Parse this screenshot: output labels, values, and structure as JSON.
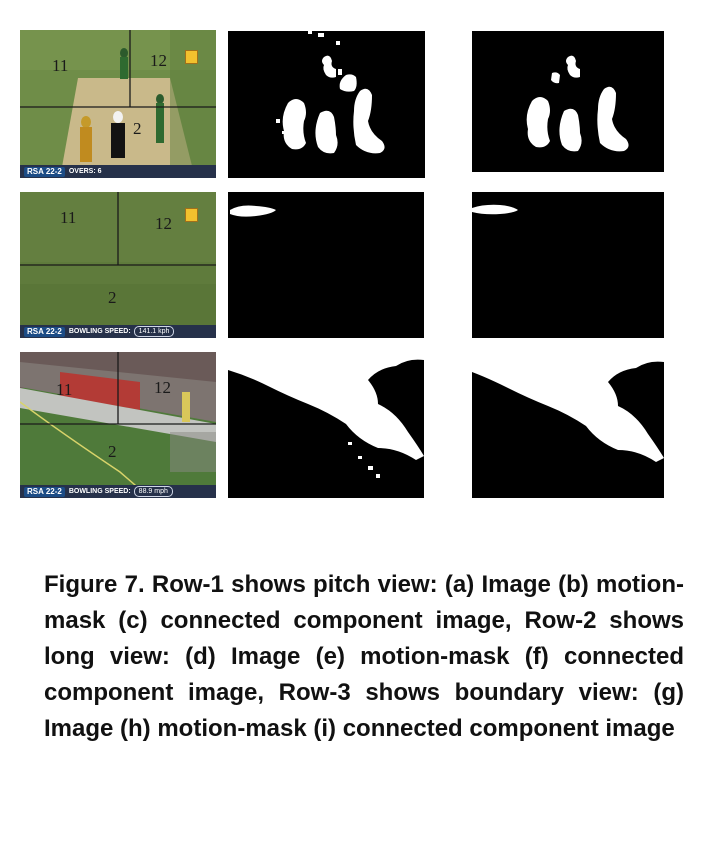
{
  "figure": {
    "caption": "Figure 7. Row-1 shows pitch view: (a) Image (b) motion-mask (c) connected component image, Row-2 shows long view: (d) Image (e) motion-mask (f) connected component image, Row-3 shows boundary view: (g) Image (h) motion-mask (i) connected component image"
  },
  "rows": [
    {
      "frame": {
        "region_numbers": [
          "11",
          "12",
          "2"
        ],
        "score": "RSA 22-2",
        "bar_text": "OVERS: 6",
        "bar_value": ""
      }
    },
    {
      "frame": {
        "region_numbers": [
          "11",
          "12",
          "2"
        ],
        "score": "RSA 22-2",
        "bar_text": "BOWLING SPEED:",
        "bar_value": "141.1 kph"
      }
    },
    {
      "frame": {
        "region_numbers": [
          "11",
          "12",
          "2"
        ],
        "score": "RSA 22-2",
        "bar_text": "BOWLING SPEED:",
        "bar_value": "88.9 mph"
      }
    }
  ],
  "colors": {
    "pitch_grass": "#6b8a45",
    "pitch_strip": "#c9b98a",
    "long_grass": "#5e7a3b",
    "boundary_grass": "#4f7a3a",
    "scorebar": "#26314a",
    "mask_background": "#000000",
    "mask_foreground": "#ffffff"
  }
}
